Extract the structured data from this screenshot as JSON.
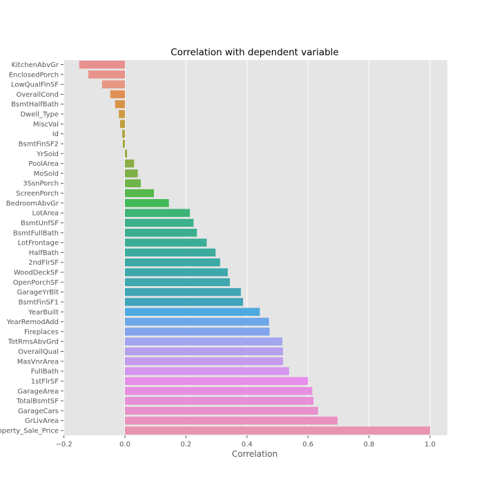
{
  "chart_data": {
    "type": "bar",
    "orientation": "horizontal",
    "title": "Correlation with dependent variable",
    "xlabel": "Correlation",
    "ylabel": "",
    "xlim": [
      -0.2,
      1.05
    ],
    "xticks": [
      -0.2,
      0.0,
      0.2,
      0.4,
      0.6,
      0.8,
      1.0
    ],
    "xtick_labels": [
      "−0.2",
      "0.0",
      "0.2",
      "0.4",
      "0.6",
      "0.8",
      "1.0"
    ],
    "grid": true,
    "background": "#e5e5e5",
    "categories": [
      "KitchenAbvGr",
      "EnclosedPorch",
      "LowQualFinSF",
      "OverallCond",
      "BsmtHalfBath",
      "Dwell_Type",
      "MiscVal",
      "Id",
      "BsmtFinSF2",
      "YrSold",
      "PoolArea",
      "MoSold",
      "3SsnPorch",
      "ScreenPorch",
      "BedroomAbvGr",
      "LotArea",
      "BsmtUnfSF",
      "BsmtFullBath",
      "LotFrontage",
      "HalfBath",
      "2ndFlrSF",
      "WoodDeckSF",
      "OpenPorchSF",
      "GarageYrBlt",
      "BsmtFinSF1",
      "YearBuilt",
      "YearRemodAdd",
      "Fireplaces",
      "TotRmsAbvGrd",
      "OverallQual",
      "MasVnrArea",
      "FullBath",
      "1stFlrSF",
      "GarageArea",
      "TotalBsmtSF",
      "GarageCars",
      "GrLivArea",
      "Property_Sale_Price"
    ],
    "values": [
      -0.15,
      -0.12,
      -0.075,
      -0.048,
      -0.032,
      -0.02,
      -0.016,
      -0.009,
      -0.007,
      0.007,
      0.03,
      0.042,
      0.052,
      0.095,
      0.144,
      0.213,
      0.225,
      0.236,
      0.268,
      0.297,
      0.312,
      0.337,
      0.344,
      0.38,
      0.387,
      0.442,
      0.472,
      0.474,
      0.516,
      0.518,
      0.518,
      0.538,
      0.6,
      0.614,
      0.618,
      0.633,
      0.697,
      1.0
    ],
    "colors": [
      "#e8908d",
      "#e8938a",
      "#e69882",
      "#e28f55",
      "#d99346",
      "#cf9a41",
      "#c19f40",
      "#b1a441",
      "#a3a642",
      "#9aaa43",
      "#8aad45",
      "#7fb046",
      "#6fb449",
      "#55b84c",
      "#3fba57",
      "#3db376",
      "#3cb08a",
      "#3bae8f",
      "#3bad97",
      "#3cab9e",
      "#3ca9a5",
      "#3da8ab",
      "#3ea7af",
      "#3fa5b5",
      "#40a3ba",
      "#4ea9e0",
      "#6ea6ea",
      "#81a4ea",
      "#a3a5ef",
      "#b5a0f0",
      "#c59bf0",
      "#d496ee",
      "#e58eea",
      "#e68fe0",
      "#e78fd7",
      "#e891cc",
      "#e991bf",
      "#e993b0"
    ]
  }
}
